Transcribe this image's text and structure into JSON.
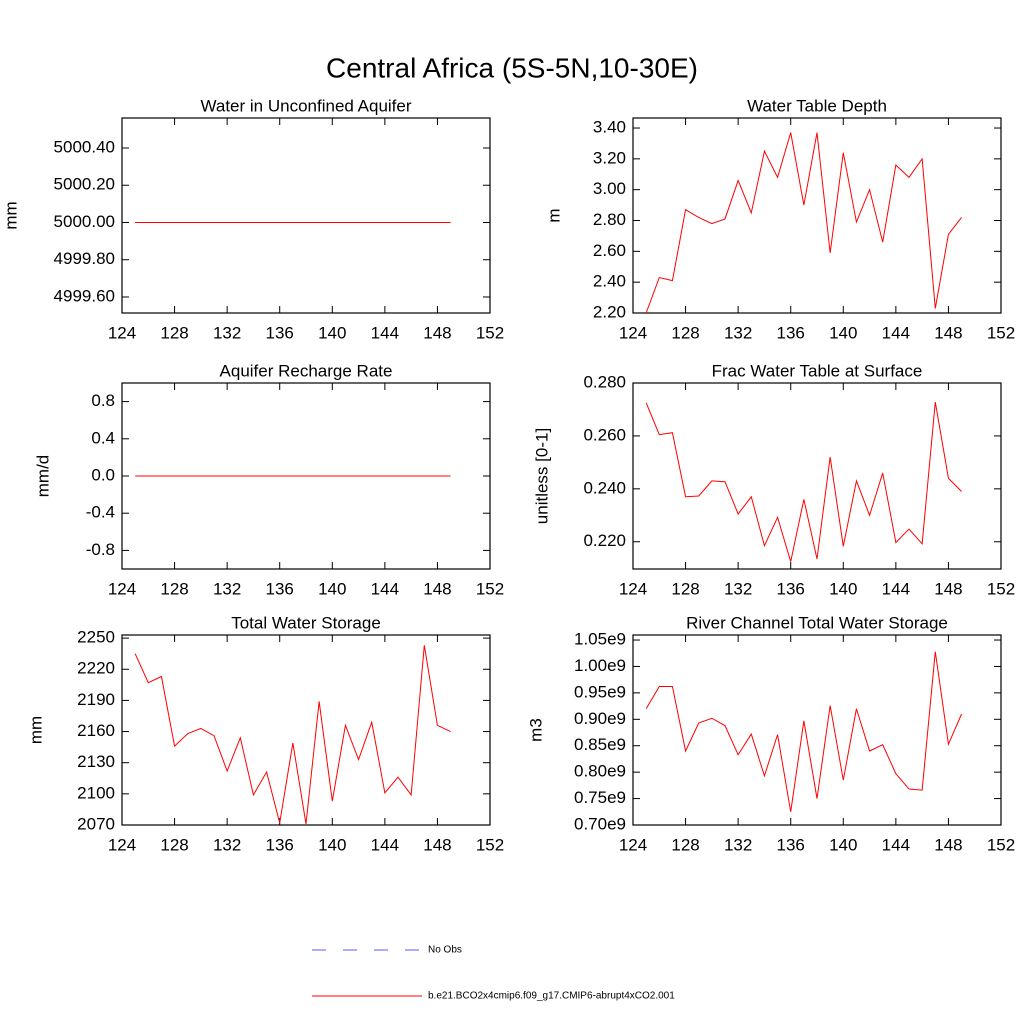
{
  "title": "Central Africa (5S-5N,10-30E)",
  "legend": [
    {
      "name": "No Obs",
      "color": "#5a5aff",
      "dash": true
    },
    {
      "name": "b.e21.BCO2x4cmip6.f09_g17.CMIP6-abrupt4xCO2.001",
      "color": "#ff0000",
      "dash": false
    }
  ],
  "chart_data": [
    {
      "type": "line",
      "title": "Water in Unconfined Aquifer",
      "y_label": "mm",
      "color": "#ff0000",
      "x": [
        125,
        126,
        127,
        128,
        129,
        130,
        131,
        132,
        133,
        134,
        135,
        136,
        137,
        138,
        139,
        140,
        141,
        142,
        143,
        144,
        145,
        146,
        147,
        148,
        149
      ],
      "values": [
        5000,
        5000,
        5000,
        5000,
        5000,
        5000,
        5000,
        5000,
        5000,
        5000,
        5000,
        5000,
        5000,
        5000,
        5000,
        5000,
        5000,
        5000,
        5000,
        5000,
        5000,
        5000,
        5000,
        5000,
        5000
      ],
      "xlim": [
        124,
        152
      ],
      "xticks": [
        124,
        128,
        132,
        136,
        140,
        144,
        148,
        152
      ],
      "ylim": [
        4999.514,
        5000.561
      ],
      "yticks": [
        {
          "value": 4999.6,
          "label": "4999.60"
        },
        {
          "value": 4999.8,
          "label": "4999.80"
        },
        {
          "value": 5000,
          "label": "5000.00"
        },
        {
          "value": 5000.2,
          "label": "5000.20"
        },
        {
          "value": 5000.4,
          "label": "5000.40"
        }
      ]
    },
    {
      "type": "line",
      "title": "Water Table Depth",
      "y_label": "m",
      "color": "#ff0000",
      "x": [
        125,
        126,
        127,
        128,
        129,
        130,
        131,
        132,
        133,
        134,
        135,
        136,
        137,
        138,
        139,
        140,
        141,
        142,
        143,
        144,
        145,
        146,
        147,
        148,
        149
      ],
      "values": [
        2.2,
        2.43,
        2.41,
        2.87,
        2.82,
        2.78,
        2.81,
        3.06,
        2.85,
        3.25,
        3.08,
        3.37,
        2.9,
        3.37,
        2.59,
        3.24,
        2.79,
        3.0,
        2.66,
        3.16,
        3.08,
        3.2,
        2.23,
        2.71,
        2.82
      ],
      "xlim": [
        124,
        152
      ],
      "xticks": [
        124,
        128,
        132,
        136,
        140,
        144,
        148,
        152
      ],
      "ylim": [
        2.2,
        3.465
      ],
      "yticks": [
        {
          "value": 2.2,
          "label": "2.20"
        },
        {
          "value": 2.4,
          "label": "2.40"
        },
        {
          "value": 2.6,
          "label": "2.60"
        },
        {
          "value": 2.8,
          "label": "2.80"
        },
        {
          "value": 3.0,
          "label": "3.00"
        },
        {
          "value": 3.2,
          "label": "3.20"
        },
        {
          "value": 3.4,
          "label": "3.40"
        }
      ]
    },
    {
      "type": "line",
      "title": "Aquifer Recharge Rate",
      "y_label": "mm/d",
      "color": "#ff0000",
      "x": [
        125,
        126,
        127,
        128,
        129,
        130,
        131,
        132,
        133,
        134,
        135,
        136,
        137,
        138,
        139,
        140,
        141,
        142,
        143,
        144,
        145,
        146,
        147,
        148,
        149
      ],
      "values": [
        0,
        0,
        0,
        0,
        0,
        0,
        0,
        0,
        0,
        0,
        0,
        0,
        0,
        0,
        0,
        0,
        0,
        0,
        0,
        0,
        0,
        0,
        0,
        0,
        0
      ],
      "xlim": [
        124,
        152
      ],
      "xticks": [
        124,
        128,
        132,
        136,
        140,
        144,
        148,
        152
      ],
      "ylim": [
        -1,
        1
      ],
      "yticks": [
        -0.8,
        -0.4,
        {
          "value": 0,
          "label": "0.0"
        },
        0.4,
        0.8
      ]
    },
    {
      "type": "line",
      "title": "Frac Water Table at Surface",
      "y_label": "unitless [0-1]",
      "color": "#ff0000",
      "x": [
        125,
        126,
        127,
        128,
        129,
        130,
        131,
        132,
        133,
        134,
        135,
        136,
        137,
        138,
        139,
        140,
        141,
        142,
        143,
        144,
        145,
        146,
        147,
        148,
        149
      ],
      "values": [
        0.2725,
        0.2605,
        0.2612,
        0.237,
        0.2373,
        0.243,
        0.2427,
        0.2305,
        0.237,
        0.2185,
        0.2292,
        0.2125,
        0.236,
        0.2135,
        0.252,
        0.2183,
        0.243,
        0.23,
        0.246,
        0.2197,
        0.2248,
        0.2192,
        0.2728,
        0.244,
        0.239
      ],
      "xlim": [
        124,
        152
      ],
      "xticks": [
        124,
        128,
        132,
        136,
        140,
        144,
        148,
        152
      ],
      "ylim": [
        0.2097,
        0.28
      ],
      "yticks": [
        {
          "value": 0.22,
          "label": "0.220"
        },
        {
          "value": 0.24,
          "label": "0.240"
        },
        {
          "value": 0.26,
          "label": "0.260"
        },
        {
          "value": 0.28,
          "label": "0.280"
        }
      ]
    },
    {
      "type": "line",
      "title": "Total Water Storage",
      "y_label": "mm",
      "color": "#ff0000",
      "x": [
        125,
        126,
        127,
        128,
        129,
        130,
        131,
        132,
        133,
        134,
        135,
        136,
        137,
        138,
        139,
        140,
        141,
        142,
        143,
        144,
        145,
        146,
        147,
        148,
        149
      ],
      "values": [
        2235,
        2207,
        2213,
        2146,
        2158,
        2163,
        2156,
        2122,
        2154,
        2099,
        2121,
        2072,
        2149,
        2071,
        2189,
        2093,
        2166,
        2133,
        2169,
        2101,
        2116,
        2099,
        2243,
        2166,
        2160
      ],
      "xlim": [
        124,
        152
      ],
      "xticks": [
        124,
        128,
        132,
        136,
        140,
        144,
        148,
        152
      ],
      "ylim": [
        2070,
        2253
      ],
      "yticks": [
        2070,
        2100,
        2130,
        2160,
        2190,
        2220,
        2250
      ]
    },
    {
      "type": "line",
      "title": "River Channel Total Water Storage",
      "y_label": "m3",
      "color": "#ff0000",
      "x": [
        125,
        126,
        127,
        128,
        129,
        130,
        131,
        132,
        133,
        134,
        135,
        136,
        137,
        138,
        139,
        140,
        141,
        142,
        143,
        144,
        145,
        146,
        147,
        148,
        149
      ],
      "values": [
        920000000,
        962000000,
        962000000,
        840000000,
        893000000,
        902000000,
        888000000,
        833000000,
        872000000,
        793000000,
        871000000,
        725000000,
        897000000,
        750000000,
        926000000,
        785000000,
        920000000,
        840000000,
        852000000,
        797000000,
        768000000,
        766000000,
        1028000000,
        853000000,
        910000000
      ],
      "xlim": [
        124,
        152
      ],
      "xticks": [
        124,
        128,
        132,
        136,
        140,
        144,
        148,
        152
      ],
      "ylim": [
        700000000,
        1059500000
      ],
      "yticks": [
        {
          "value": 700000000,
          "label": "0.70e9"
        },
        {
          "value": 750000000,
          "label": "0.75e9"
        },
        {
          "value": 800000000,
          "label": "0.80e9"
        },
        {
          "value": 850000000,
          "label": "0.85e9"
        },
        {
          "value": 900000000,
          "label": "0.90e9"
        },
        {
          "value": 950000000,
          "label": "0.95e9"
        },
        {
          "value": 1000000000,
          "label": "1.00e9"
        },
        {
          "value": 1050000000,
          "label": "1.05e9"
        }
      ]
    }
  ]
}
